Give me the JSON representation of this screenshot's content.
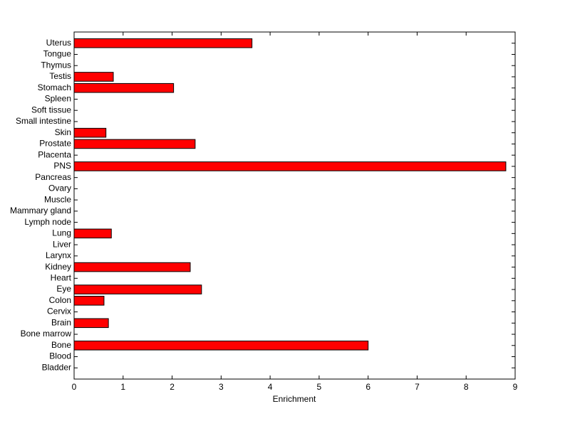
{
  "chart_data": {
    "type": "barh",
    "xlabel": "Enrichment",
    "categories": [
      "Bladder",
      "Blood",
      "Bone",
      "Bone marrow",
      "Brain",
      "Cervix",
      "Colon",
      "Eye",
      "Heart",
      "Kidney",
      "Larynx",
      "Liver",
      "Lung",
      "Lymph node",
      "Mammary gland",
      "Muscle",
      "Ovary",
      "Pancreas",
      "PNS",
      "Placenta",
      "Prostate",
      "Skin",
      "Small intestine",
      "Soft tissue",
      "Spleen",
      "Stomach",
      "Testis",
      "Thymus",
      "Tongue",
      "Uterus"
    ],
    "values": [
      0,
      0,
      6.0,
      0,
      0.7,
      0,
      0.61,
      2.6,
      0,
      2.37,
      0,
      0,
      0.76,
      0,
      0,
      0,
      0,
      0,
      8.81,
      0,
      2.47,
      0.65,
      0,
      0,
      0,
      2.03,
      0.8,
      0,
      0,
      3.63
    ],
    "color": "#ff0000",
    "xlim": [
      0,
      9
    ],
    "xticks": [
      0,
      1,
      2,
      3,
      4,
      5,
      6,
      7,
      8,
      9
    ],
    "grid": false
  }
}
